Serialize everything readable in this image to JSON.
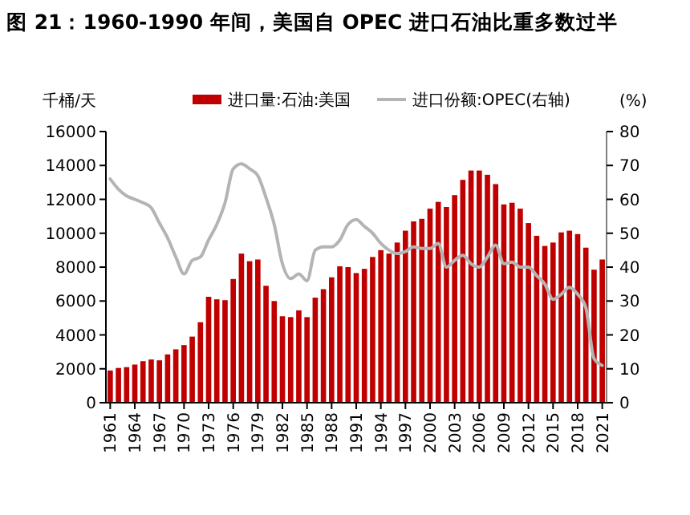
{
  "chart_data": {
    "type": "bar",
    "title": "图 21：1960-1990 年间，美国自 OPEC 进口石油比重多数过半",
    "ylabel": "千桶/天",
    "y2label": "(%)",
    "categories": [
      "1961",
      null,
      null,
      "1964",
      null,
      null,
      "1967",
      null,
      null,
      "1970",
      null,
      null,
      "1973",
      null,
      null,
      "1976",
      null,
      null,
      "1979",
      null,
      null,
      "1982",
      null,
      null,
      "1985",
      null,
      null,
      "1988",
      null,
      null,
      "1991",
      null,
      null,
      "1994",
      null,
      null,
      "1997",
      null,
      null,
      "2000",
      null,
      null,
      "2003",
      null,
      null,
      "2006",
      null,
      null,
      "2009",
      null,
      null,
      "2012",
      null,
      null,
      "2015",
      null,
      null,
      "2018",
      null,
      null,
      "2021"
    ],
    "series": [
      {
        "name": "进口量:石油:美国",
        "color": "#c00000",
        "values": [
          1900,
          2050,
          2100,
          2250,
          2450,
          2550,
          2500,
          2850,
          3150,
          3400,
          3900,
          4750,
          6250,
          6100,
          6050,
          7300,
          8800,
          8350,
          8450,
          6900,
          6000,
          5100,
          5050,
          5450,
          5050,
          6200,
          6700,
          7400,
          8050,
          8000,
          7650,
          7900,
          8600,
          9000,
          8800,
          9450,
          10150,
          10700,
          10850,
          11450,
          11850,
          11550,
          12250,
          13150,
          13700,
          13700,
          13450,
          12900,
          11700,
          11800,
          11450,
          10600,
          9850,
          9250,
          9450,
          10050,
          10150,
          9950,
          9150,
          7850,
          8450
        ]
      },
      {
        "name": "进口份额:OPEC(右轴)",
        "type": "line",
        "axis": "y2",
        "color": "#b4b4b4",
        "values": [
          66,
          63,
          61,
          60,
          59,
          57.5,
          53,
          48.6,
          43,
          38,
          42,
          43,
          48,
          52.6,
          59,
          69,
          70.5,
          69,
          67,
          60.5,
          52.6,
          41,
          36.6,
          38,
          36,
          45,
          46,
          46,
          48,
          52.6,
          54,
          52,
          50,
          47,
          45,
          44,
          44.6,
          46,
          45.5,
          45.5,
          47,
          40,
          42,
          43.5,
          41,
          40,
          43,
          46.5,
          41,
          41.5,
          40,
          40,
          37.5,
          35,
          30.5,
          32,
          34,
          32,
          28,
          13,
          11
        ]
      }
    ],
    "ylim": [
      0,
      16000
    ],
    "yticks": [
      0,
      2000,
      4000,
      6000,
      8000,
      10000,
      12000,
      14000,
      16000
    ],
    "y2lim": [
      0,
      80
    ],
    "y2ticks": [
      0,
      10,
      20,
      30,
      40,
      50,
      60,
      70,
      80
    ],
    "legend": "top",
    "grid": false
  }
}
